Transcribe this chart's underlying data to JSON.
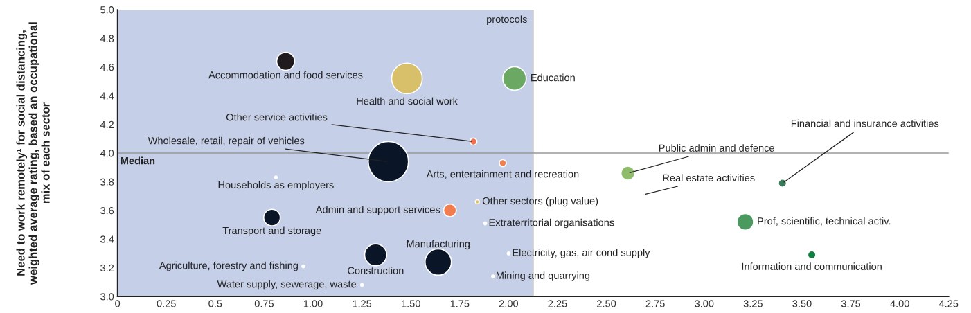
{
  "chart_data": {
    "type": "bubble",
    "ylabel": "Need to work remotely¹ for social distancing,\nweighted average rating, based an occupational\nmix of each sector",
    "x": [
      0.86,
      1.48,
      2.03,
      1.82,
      1.385,
      1.97,
      0.81,
      2.61,
      2.69,
      3.4,
      1.84,
      1.7,
      0.79,
      1.88,
      3.21,
      1.64,
      1.32,
      2.0,
      3.55,
      0.95,
      1.92,
      1.25
    ],
    "values": [
      4.64,
      4.52,
      4.52,
      4.08,
      3.94,
      3.93,
      3.83,
      3.86,
      3.71,
      3.79,
      3.66,
      3.6,
      3.55,
      3.51,
      3.52,
      3.24,
      3.29,
      3.3,
      3.29,
      3.21,
      3.14,
      3.08
    ],
    "sizes": [
      0.2,
      0.58,
      0.34,
      0.03,
      1,
      0.03,
      0.005,
      0.12,
      0.002,
      0.04,
      0.01,
      0.1,
      0.17,
      0.005,
      0.17,
      0.43,
      0.3,
      0.005,
      0.04,
      0.005,
      0.005,
      0.005
    ],
    "colors": [
      "#1e1a1e",
      "#d8c06a",
      "#6aa864",
      "#f07050",
      "#0a1628",
      "#f08050",
      "#ffffff",
      "#8fbc6a",
      "#a0b050",
      "#3a7a5a",
      "#e0c060",
      "#f07c50",
      "#0a1628",
      "#ffffff",
      "#4a9a60",
      "#0a1628",
      "#0a1628",
      "#ffffff",
      "#108040",
      "#ffffff",
      "#ffffff",
      "#ffffff"
    ],
    "annotations": [
      {
        "text": "Accommodation and food services",
        "x": 0.86,
        "y": 4.64
      },
      {
        "text": "Health and social work",
        "x": 1.48,
        "y": 4.52
      },
      {
        "text": "Education",
        "x": 2.03,
        "y": 4.52
      },
      {
        "text": "Other service activities",
        "x": 1.82,
        "y": 4.08
      },
      {
        "text": "Wholesale, retail, repair of vehicles",
        "x": 1.385,
        "y": 3.94
      },
      {
        "text": "Arts, entertainment and recreation",
        "x": 1.97,
        "y": 3.93
      },
      {
        "text": "Households as employers",
        "x": 0.81,
        "y": 3.83
      },
      {
        "text": "Public admin and defence",
        "x": 2.61,
        "y": 3.86
      },
      {
        "text": "Real estate activities",
        "x": 2.69,
        "y": 3.71
      },
      {
        "text": "Financial and insurance activities",
        "x": 3.4,
        "y": 3.79
      },
      {
        "text": "Other sectors (plug value)",
        "x": 1.84,
        "y": 3.66
      },
      {
        "text": "Admin and support services",
        "x": 1.7,
        "y": 3.6
      },
      {
        "text": "Transport and storage",
        "x": 0.79,
        "y": 3.55
      },
      {
        "text": "Extraterritorial organisations",
        "x": 1.88,
        "y": 3.51
      },
      {
        "text": "Prof, scientific, technical activ.",
        "x": 3.21,
        "y": 3.52
      },
      {
        "text": "Manufacturing",
        "x": 1.64,
        "y": 3.24
      },
      {
        "text": "Construction",
        "x": 1.32,
        "y": 3.29
      },
      {
        "text": "Electricity, gas, air cond supply",
        "x": 2.0,
        "y": 3.3
      },
      {
        "text": "Information and communication",
        "x": 3.55,
        "y": 3.29
      },
      {
        "text": "Agriculture, forestry and fishing",
        "x": 0.95,
        "y": 3.21
      },
      {
        "text": "Mining and quarrying",
        "x": 1.92,
        "y": 3.14
      },
      {
        "text": "Water supply, sewerage, waste",
        "x": 1.25,
        "y": 3.08
      }
    ],
    "xlim": [
      0,
      4.25
    ],
    "xticks": [
      0,
      0.25,
      0.5,
      {
        "value": 0.75,
        "label": "0.75"
      },
      {
        "value": 1,
        "label": "1.00"
      },
      {
        "value": 1.25,
        "label": "1.25"
      },
      {
        "value": 1.5,
        "label": "1.50"
      },
      {
        "value": 1.75,
        "label": "1.75"
      },
      {
        "value": 2,
        "label": "2.00"
      },
      {
        "value": 2.25,
        "label": "2.25"
      },
      {
        "value": 2.5,
        "label": "2.50"
      },
      {
        "value": 2.75,
        "label": "2.75"
      },
      {
        "value": 3,
        "label": "3.00"
      },
      {
        "value": 3.25,
        "label": "3.25"
      },
      {
        "value": 3.5,
        "label": "3.50"
      },
      {
        "value": 3.75,
        "label": "3.75"
      },
      {
        "value": 4,
        "label": "4.00"
      },
      {
        "value": 4.25,
        "label": "4.25"
      }
    ],
    "ylim": [
      3,
      5
    ],
    "yticks": [
      {
        "value": 3,
        "label": "3.0"
      },
      3.2,
      3.4,
      3.6,
      3.8,
      {
        "value": 4,
        "label": "4.0"
      },
      4.2,
      4.4,
      4.6,
      4.8,
      {
        "value": 5,
        "label": "5.0"
      }
    ],
    "ref_lines": [
      {
        "axis": "y",
        "value": 4,
        "label": "Median",
        "color": "#999999"
      }
    ],
    "bands": [
      {
        "axis": "x",
        "from": 0,
        "to": 2.125,
        "label": "protocols",
        "color": "#c5cfe8"
      }
    ],
    "grid": false
  }
}
